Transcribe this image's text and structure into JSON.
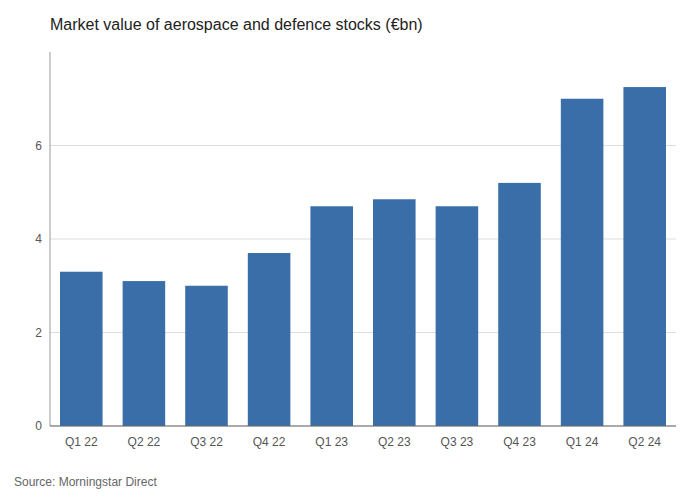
{
  "chart_data": {
    "type": "bar",
    "title": "Market value of aerospace and defence stocks (€bn)",
    "categories": [
      "Q1 22",
      "Q2 22",
      "Q3 22",
      "Q4 22",
      "Q1 23",
      "Q2 23",
      "Q3 23",
      "Q4 23",
      "Q1 24",
      "Q2 24"
    ],
    "values": [
      3.3,
      3.1,
      3.0,
      3.7,
      4.7,
      4.85,
      4.7,
      5.2,
      7.0,
      7.25
    ],
    "color": "#3a6ea8",
    "ylim": [
      0,
      8
    ],
    "yticks": [
      0,
      2,
      4,
      6
    ],
    "grid": true,
    "source": "Source: Morningstar Direct"
  }
}
